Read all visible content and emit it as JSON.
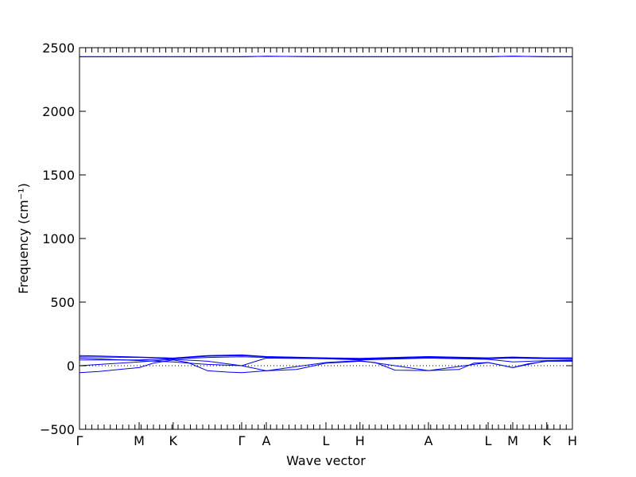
{
  "chart_data": {
    "type": "line",
    "ylabel": "Frequency (cm⁻¹)",
    "xlabel": "Wave vector",
    "ylim": [
      -500,
      2500
    ],
    "yticks": [
      -500,
      0,
      500,
      1000,
      1500,
      2000,
      2500
    ],
    "ytick_labels": [
      "−500",
      "0",
      "500",
      "1000",
      "1500",
      "2000",
      "2500"
    ],
    "xlim": [
      0,
      1
    ],
    "path_labels": [
      {
        "label": "Γ",
        "x": 0.0
      },
      {
        "label": "M",
        "x": 0.121
      },
      {
        "label": "K",
        "x": 0.19
      },
      {
        "label": "Γ",
        "x": 0.329
      },
      {
        "label": "A",
        "x": 0.379
      },
      {
        "label": "L",
        "x": 0.5
      },
      {
        "label": "H",
        "x": 0.569
      },
      {
        "label": "A",
        "x": 0.708
      },
      {
        "label": "L",
        "x": 0.829
      },
      {
        "label": "M",
        "x": 0.879
      },
      {
        "label": "K",
        "x": 0.948
      },
      {
        "label": "H",
        "x": 1.0
      }
    ],
    "minor_tick_count": 80,
    "zero_line": true,
    "band_color": "#0000ff",
    "series": [
      {
        "x": [
          0,
          0.121,
          0.19,
          0.329,
          0.379,
          0.5,
          0.569,
          0.708,
          0.829,
          0.879,
          0.948,
          1.0
        ],
        "y": [
          2430,
          2430,
          2430,
          2430,
          2432,
          2430,
          2430,
          2430,
          2430,
          2432,
          2430,
          2430
        ]
      },
      {
        "x": [
          0,
          0.121,
          0.19,
          0.329,
          0.379,
          0.5,
          0.569,
          0.708,
          0.829,
          0.879,
          0.948,
          1.0
        ],
        "y": [
          2428,
          2428,
          2428,
          2428,
          2433,
          2428,
          2428,
          2428,
          2428,
          2434,
          2428,
          2428
        ]
      },
      {
        "x": [
          0,
          0.04,
          0.08,
          0.121,
          0.15,
          0.19,
          0.22,
          0.26,
          0.3,
          0.329,
          0.379,
          0.44,
          0.5,
          0.54,
          0.569,
          0.6,
          0.64,
          0.708,
          0.77,
          0.8,
          0.829,
          0.879,
          0.91,
          0.948,
          1.0
        ],
        "y": [
          -55,
          -45,
          -30,
          -15,
          20,
          45,
          25,
          -40,
          -50,
          -55,
          -40,
          -30,
          20,
          28,
          35,
          25,
          -35,
          -38,
          -30,
          20,
          25,
          -15,
          15,
          35,
          35
        ]
      },
      {
        "x": [
          0,
          0.121,
          0.19,
          0.26,
          0.329,
          0.379,
          0.5,
          0.569,
          0.708,
          0.829,
          0.879,
          0.948,
          1.0
        ],
        "y": [
          0,
          30,
          50,
          35,
          0,
          -40,
          25,
          40,
          -38,
          25,
          -15,
          40,
          40
        ]
      },
      {
        "x": [
          0,
          0.121,
          0.19,
          0.26,
          0.329,
          0.379,
          0.5,
          0.569,
          0.708,
          0.829,
          0.879,
          0.948,
          1.0
        ],
        "y": [
          45,
          45,
          55,
          65,
          70,
          65,
          55,
          50,
          65,
          55,
          60,
          55,
          55
        ]
      },
      {
        "x": [
          0,
          0.121,
          0.19,
          0.26,
          0.329,
          0.379,
          0.5,
          0.569,
          0.708,
          0.829,
          0.879,
          0.948,
          1.0
        ],
        "y": [
          70,
          65,
          58,
          75,
          80,
          70,
          60,
          55,
          70,
          60,
          65,
          60,
          60
        ]
      },
      {
        "x": [
          0,
          0.121,
          0.19,
          0.26,
          0.329,
          0.379,
          0.5,
          0.569,
          0.708,
          0.829,
          0.879,
          0.948,
          1.0
        ],
        "y": [
          80,
          68,
          60,
          80,
          85,
          72,
          62,
          58,
          72,
          62,
          68,
          62,
          62
        ]
      },
      {
        "x": [
          0,
          0.121,
          0.19,
          0.26,
          0.329,
          0.379,
          0.5,
          0.569,
          0.708,
          0.829,
          0.879,
          0.948,
          1.0
        ],
        "y": [
          60,
          40,
          30,
          10,
          0,
          60,
          55,
          45,
          60,
          50,
          30,
          40,
          45
        ]
      }
    ]
  }
}
